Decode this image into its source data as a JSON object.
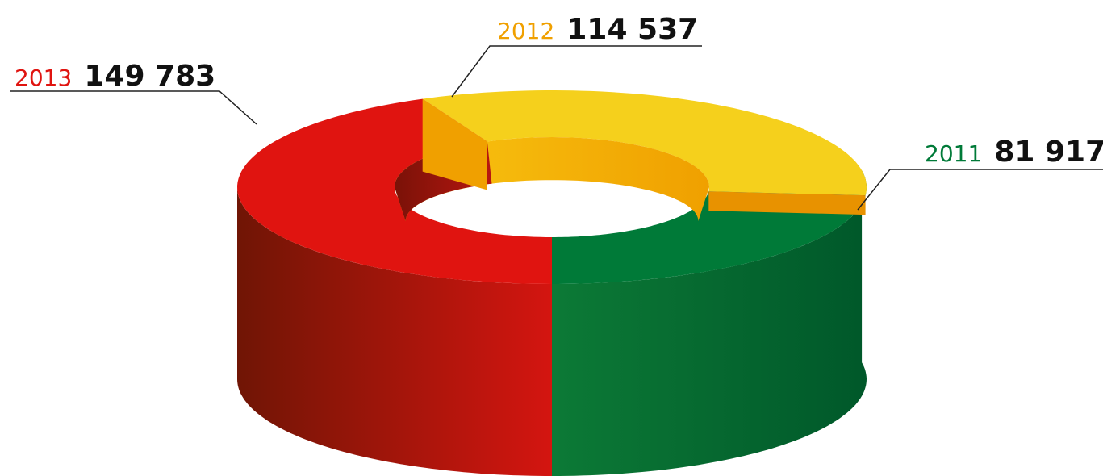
{
  "chart_data": {
    "type": "pie",
    "title": "",
    "slices": [
      {
        "category": "2013",
        "value": 149783,
        "value_label": "149 783",
        "color": "#e01410"
      },
      {
        "category": "2012",
        "value": 114537,
        "value_label": "114 537",
        "color": "#f5d01c"
      },
      {
        "category": "2011",
        "value": 81917,
        "value_label": "81 917",
        "color": "#007a38"
      }
    ]
  }
}
